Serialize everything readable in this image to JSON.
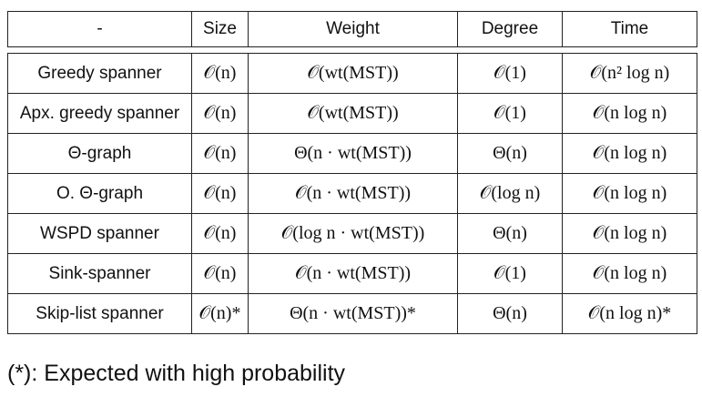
{
  "table": {
    "header": [
      "-",
      "Size",
      "Weight",
      "Degree",
      "Time"
    ],
    "rows": [
      [
        "Greedy spanner",
        "𝒪(n)",
        "𝒪(wt(MST))",
        "𝒪(1)",
        "𝒪(n² log n)"
      ],
      [
        "Apx. greedy spanner",
        "𝒪(n)",
        "𝒪(wt(MST))",
        "𝒪(1)",
        "𝒪(n log n)"
      ],
      [
        "Θ-graph",
        "𝒪(n)",
        "Θ(n · wt(MST))",
        "Θ(n)",
        "𝒪(n log n)"
      ],
      [
        "O. Θ-graph",
        "𝒪(n)",
        "𝒪(n · wt(MST))",
        "𝒪(log n)",
        "𝒪(n log n)"
      ],
      [
        "WSPD spanner",
        "𝒪(n)",
        "𝒪(log n · wt(MST))",
        "Θ(n)",
        "𝒪(n log n)"
      ],
      [
        "Sink-spanner",
        "𝒪(n)",
        "𝒪(n · wt(MST))",
        "𝒪(1)",
        "𝒪(n log n)"
      ],
      [
        "Skip-list spanner",
        "𝒪(n)*",
        "Θ(n · wt(MST))*",
        "Θ(n)",
        "𝒪(n log n)*"
      ]
    ]
  },
  "footnote": "(*): Expected with high probability"
}
